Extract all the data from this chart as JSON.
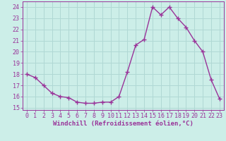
{
  "x": [
    0,
    1,
    2,
    3,
    4,
    5,
    6,
    7,
    8,
    9,
    10,
    11,
    12,
    13,
    14,
    15,
    16,
    17,
    18,
    19,
    20,
    21,
    22,
    23
  ],
  "y": [
    18.0,
    17.7,
    17.0,
    16.3,
    16.0,
    15.9,
    15.5,
    15.4,
    15.4,
    15.5,
    15.5,
    16.0,
    18.2,
    20.6,
    21.1,
    24.0,
    23.3,
    24.0,
    23.0,
    22.2,
    21.0,
    20.0,
    17.5,
    15.8
  ],
  "line_color": "#993399",
  "marker": "+",
  "markersize": 4,
  "linewidth": 1.0,
  "markeredgewidth": 1.0,
  "xlabel": "Windchill (Refroidissement éolien,°C)",
  "xlabel_fontsize": 6.5,
  "ylabel": "",
  "title": "",
  "xlim": [
    -0.5,
    23.5
  ],
  "ylim": [
    14.8,
    24.5
  ],
  "yticks": [
    15,
    16,
    17,
    18,
    19,
    20,
    21,
    22,
    23,
    24
  ],
  "xticks": [
    0,
    1,
    2,
    3,
    4,
    5,
    6,
    7,
    8,
    9,
    10,
    11,
    12,
    13,
    14,
    15,
    16,
    17,
    18,
    19,
    20,
    21,
    22,
    23
  ],
  "background_color": "#cceee8",
  "grid_color": "#b0d8d4",
  "tick_color": "#993399",
  "tick_fontsize": 6.0,
  "xlabel_color": "#993399",
  "spine_color": "#993399"
}
